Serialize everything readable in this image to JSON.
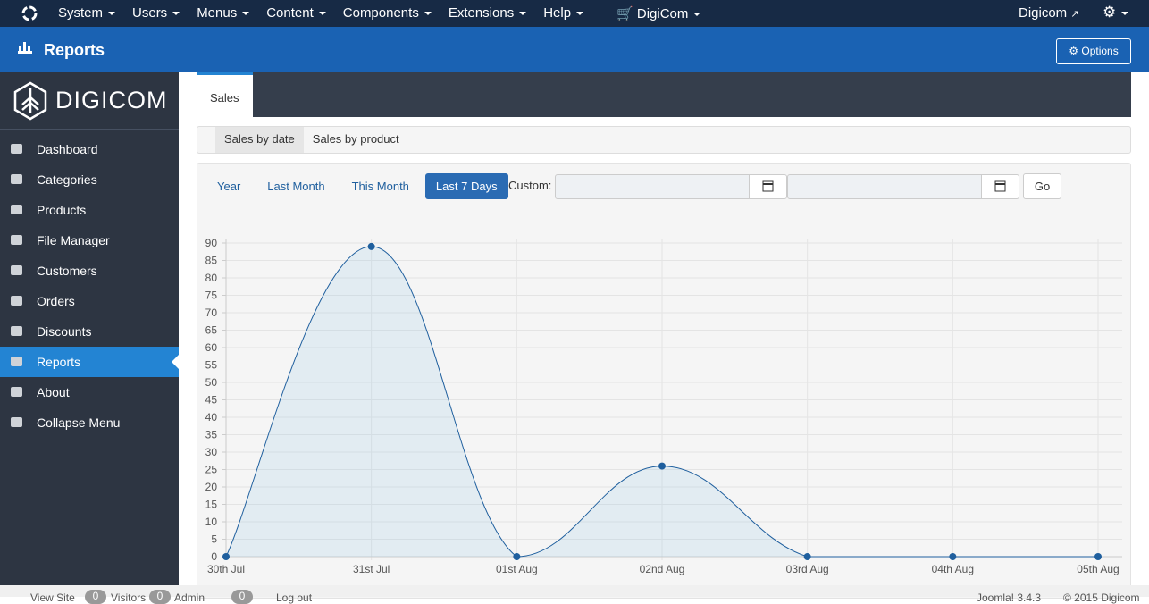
{
  "navbar": {
    "menus": [
      "System",
      "Users",
      "Menus",
      "Content",
      "Components",
      "Extensions",
      "Help"
    ],
    "component": "DigiCom",
    "user_link": "Digicom"
  },
  "header": {
    "title": "Reports",
    "options": "Options"
  },
  "sidebar": {
    "brand": "DIGICOM",
    "items": [
      "Dashboard",
      "Categories",
      "Products",
      "File Manager",
      "Customers",
      "Orders",
      "Discounts",
      "Reports",
      "About",
      "Collapse Menu"
    ],
    "active": 7
  },
  "tabs": [
    "Sales"
  ],
  "subtabs": [
    "Sales by date",
    "Sales by product"
  ],
  "filters": {
    "buttons": [
      "Year",
      "Last Month",
      "This Month",
      "Last 7 Days"
    ],
    "active": 3,
    "custom_label": "Custom:",
    "go": "Go"
  },
  "chart_data": {
    "type": "line",
    "categories": [
      "30th Jul",
      "31st Jul",
      "01st Aug",
      "02nd Aug",
      "03rd Aug",
      "04th Aug",
      "05th Aug"
    ],
    "series": [
      {
        "name": "Sales",
        "color": "#1f5f9e",
        "values": [
          0,
          89,
          0,
          26,
          0,
          0,
          0
        ]
      }
    ],
    "ylim": [
      0,
      90
    ],
    "yticks": [
      0,
      5,
      10,
      15,
      20,
      25,
      30,
      35,
      40,
      45,
      50,
      55,
      60,
      65,
      70,
      75,
      80,
      85,
      90
    ],
    "grid": true
  },
  "footer": {
    "view_site": "View Site",
    "visitors": "Visitors",
    "visitors_count": 0,
    "admin": "Admin",
    "admin_count": 0,
    "messages_count": 0,
    "logout": "Log out",
    "version": "Joomla! 3.4.3",
    "copyright": "© 2015 Digicom"
  }
}
